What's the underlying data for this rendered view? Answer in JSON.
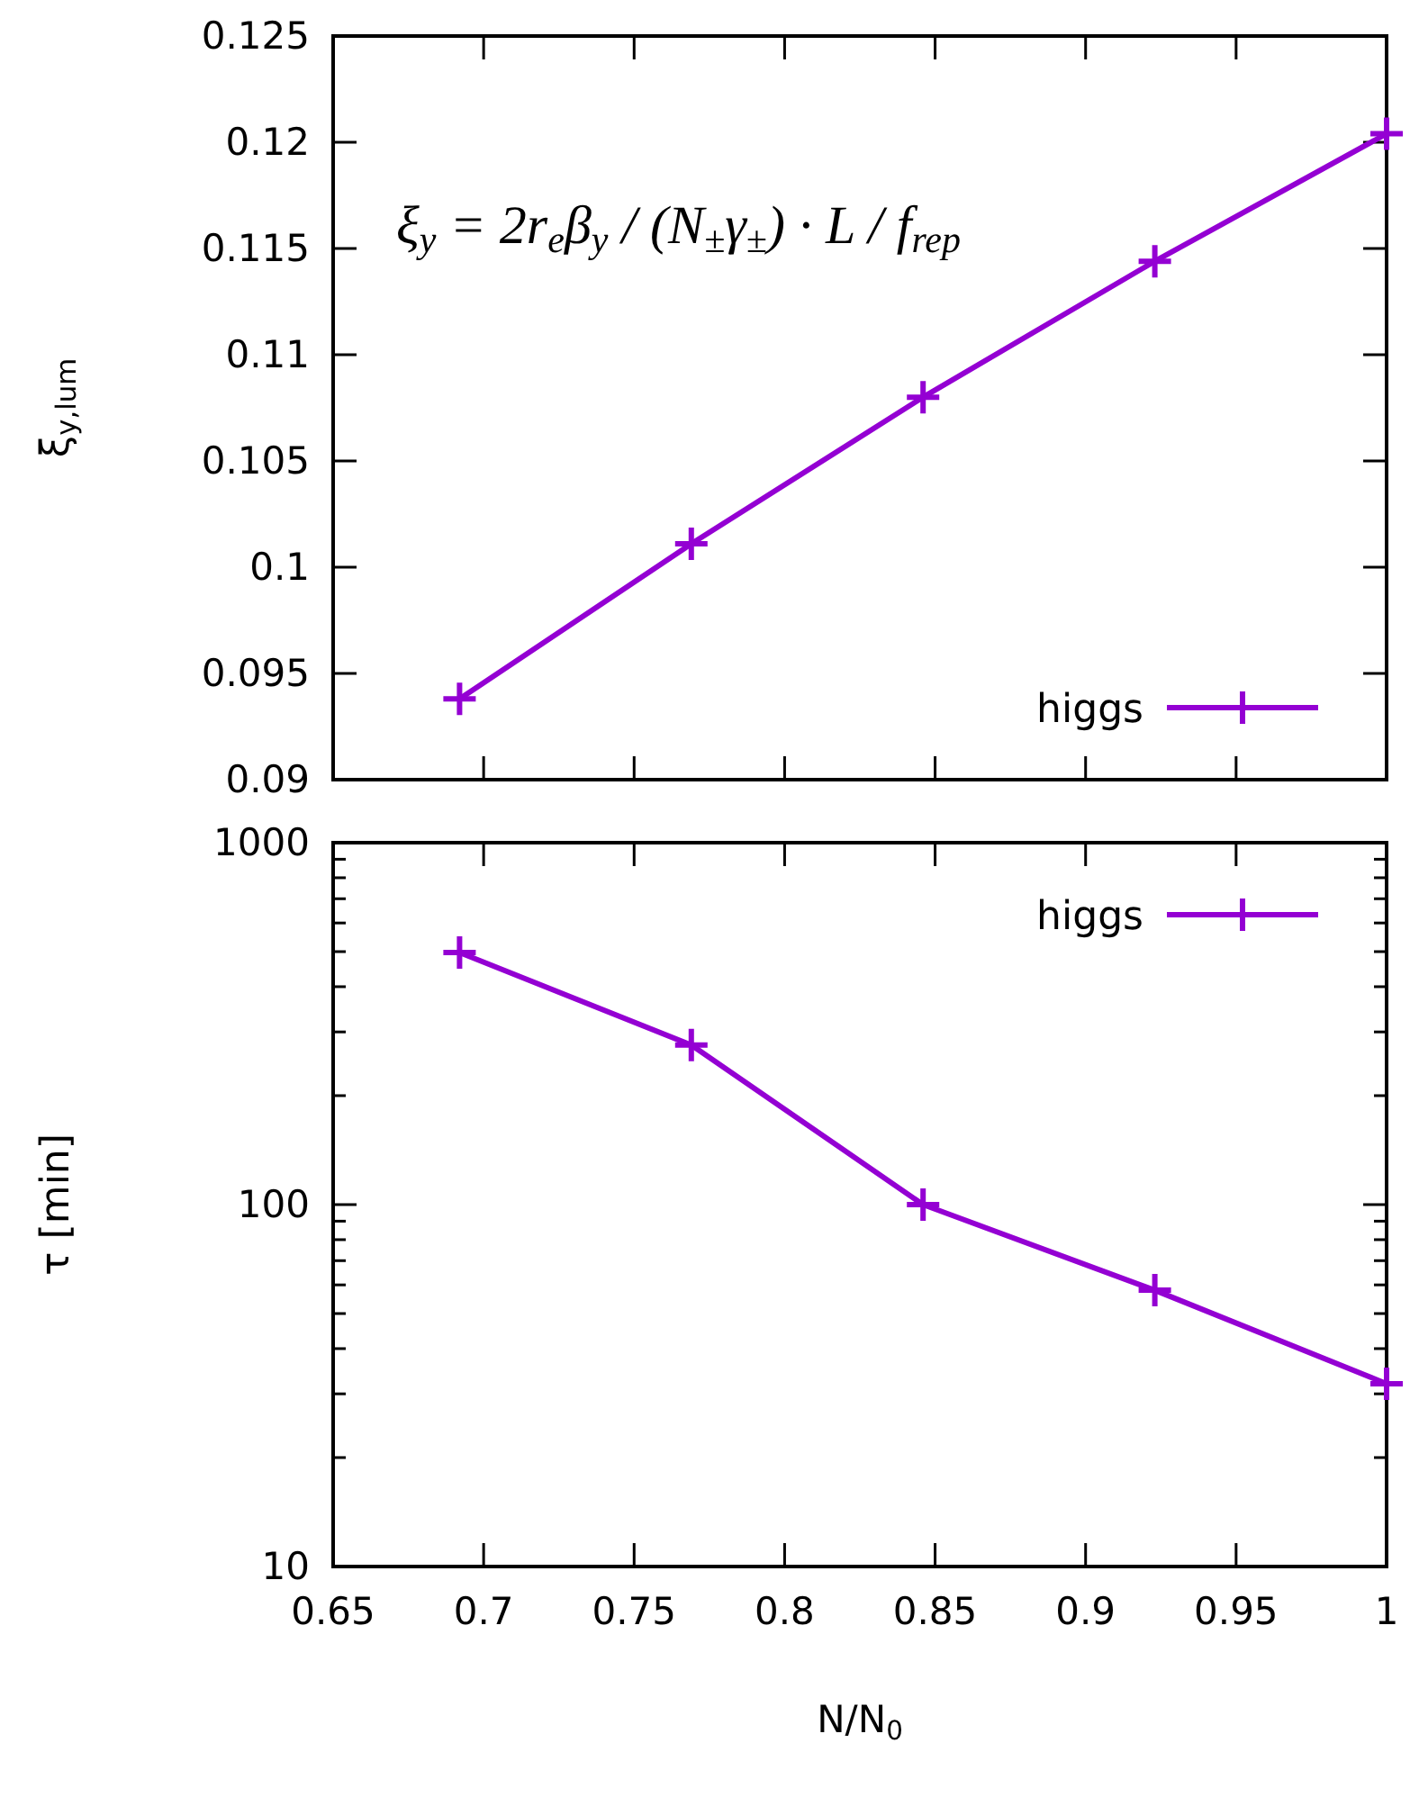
{
  "chart_data": [
    {
      "type": "line",
      "ylabel": "ξ$_{y,lum}$",
      "x": [
        0.692,
        0.769,
        0.846,
        0.923,
        1.0
      ],
      "series": [
        {
          "name": "higgs",
          "color": "#9400d3",
          "values": [
            0.0938,
            0.1011,
            0.108,
            0.1144,
            0.1204
          ]
        }
      ],
      "xlim": [
        0.65,
        1
      ],
      "xticks": [
        0.65,
        0.7,
        0.75,
        0.8,
        0.85,
        0.9,
        0.95,
        1
      ],
      "ylim": [
        0.09,
        0.125
      ],
      "yticks": [
        0.09,
        0.095,
        0.1,
        0.105,
        0.11,
        0.115,
        0.12,
        0.125
      ],
      "tick_labels": "y",
      "legend": "bottom right",
      "marker": "cross",
      "grid": false,
      "annotations": [
        "ξ$_{y}$ = 2r$_{e}$β$_{y}$ / (N$_{±}$γ$_{±}$) · L / f$_{rep}$"
      ]
    },
    {
      "type": "line",
      "xlabel": "N/N$_{0}$",
      "ylabel": "τ [min]",
      "x": [
        0.692,
        0.769,
        0.846,
        0.923,
        1.0
      ],
      "series": [
        {
          "name": "higgs",
          "color": "#9400d3",
          "values": [
            497,
            276,
            100,
            58,
            32
          ]
        }
      ],
      "xlim": [
        0.65,
        1
      ],
      "xticks": [
        0.65,
        0.7,
        0.75,
        0.8,
        0.85,
        0.9,
        0.95,
        1
      ],
      "ylim": [
        10,
        1000
      ],
      "log": "y",
      "yticks": [
        10,
        {
          "value": 20,
          "label": null
        },
        {
          "value": 30,
          "label": null
        },
        {
          "value": 40,
          "label": null
        },
        {
          "value": 50,
          "label": null
        },
        {
          "value": 60,
          "label": null
        },
        {
          "value": 70,
          "label": null
        },
        {
          "value": 80,
          "label": null
        },
        {
          "value": 90,
          "label": null
        },
        100,
        {
          "value": 200,
          "label": null
        },
        {
          "value": 300,
          "label": null
        },
        {
          "value": 400,
          "label": null
        },
        {
          "value": 500,
          "label": null
        },
        {
          "value": 600,
          "label": null
        },
        {
          "value": 700,
          "label": null
        },
        {
          "value": 800,
          "label": null
        },
        {
          "value": 900,
          "label": null
        },
        1000
      ],
      "legend": "top right",
      "marker": "cross",
      "grid": false
    }
  ]
}
